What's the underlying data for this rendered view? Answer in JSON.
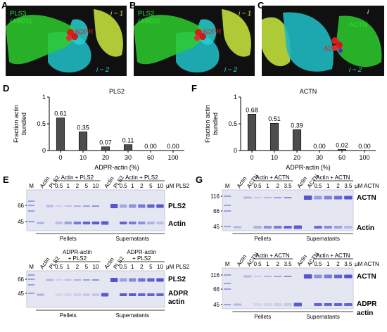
{
  "panels": {
    "A": {
      "letter": "A",
      "protein": "PLS3",
      "domain": "(ABD1)",
      "adpr": "ADPR",
      "i_minus_1": "i − 1",
      "i_minus_2": "i − 2"
    },
    "B": {
      "letter": "B",
      "protein": "PLS2",
      "domain": "(ABD2)",
      "adpr": "ADPR",
      "i_minus_1": "i − 1",
      "i_minus_2": "i − 2"
    },
    "C": {
      "letter": "C",
      "protein": "ACTN",
      "adpr": "ADPR",
      "i": "i",
      "i_minus_2": "i − 2"
    },
    "D": {
      "letter": "D"
    },
    "F": {
      "letter": "F"
    },
    "E": {
      "letter": "E"
    },
    "G": {
      "letter": "G"
    }
  },
  "chart_data": [
    {
      "type": "bar",
      "title": "PLS2",
      "xlabel": "ADPR-actin (%)",
      "ylabel": "Fraction actin bundled",
      "ylabel_lines": [
        "Fraction actin",
        "bundled"
      ],
      "categories": [
        "0",
        "10",
        "20",
        "30",
        "60",
        "100"
      ],
      "values": [
        0.61,
        0.35,
        0.07,
        0.11,
        0.0,
        0.0
      ],
      "value_labels": [
        "0.61",
        "0.35",
        "0.07",
        "0.11",
        "0.00",
        "0.00"
      ],
      "yticks": [
        "0",
        "0.5",
        "1"
      ],
      "ylim": [
        0,
        1
      ],
      "bar_color": "#4d4d4d"
    },
    {
      "type": "bar",
      "title": "ACTN",
      "xlabel": "ADPR-actin (%)",
      "ylabel": "Fraction actin bundled",
      "ylabel_lines": [
        "Fraction actin",
        "bundled"
      ],
      "categories": [
        "0",
        "10",
        "20",
        "30",
        "60",
        "100"
      ],
      "values": [
        0.68,
        0.51,
        0.39,
        0.0,
        0.02,
        0.0
      ],
      "value_labels": [
        "0.68",
        "0.51",
        "0.39",
        "0.00",
        "0.02",
        "0.00"
      ],
      "yticks": [
        "0",
        "0.5",
        "1"
      ],
      "ylim": [
        0,
        1
      ],
      "bar_color": "#4d4d4d"
    }
  ],
  "gels": {
    "E_top": {
      "lane_headers": [
        "M",
        "Actin",
        "PLS2",
        "Actin",
        "PLS2"
      ],
      "group1": "Actin + PLS2",
      "group2": "Actin + PLS2",
      "concs": [
        "0.5",
        "1",
        "2",
        "5",
        "10",
        "0.5",
        "1",
        "2",
        "5",
        "10"
      ],
      "unit": "μM PLS2",
      "mw": [
        "66",
        "45"
      ],
      "band_labels": [
        "PLS2",
        "Actin"
      ],
      "footers": [
        "Pellets",
        "Supernatants"
      ]
    },
    "E_bottom": {
      "lane_headers": [
        "M",
        "Actin",
        "PLS2",
        "Actin",
        "PLS2"
      ],
      "group1": [
        "ADPR-actin",
        "+ PLS2"
      ],
      "group2": [
        "ADPR-actin",
        "+ PLS2"
      ],
      "concs": [
        "0.5",
        "1",
        "2",
        "5",
        "10",
        "0.5",
        "1",
        "2",
        "5",
        "10"
      ],
      "unit": "μM PLS2",
      "mw": [
        "66",
        "45"
      ],
      "band_labels": [
        "PLS2",
        "ADPR",
        "actin"
      ],
      "footers": [
        "Pellets",
        "Supernatants"
      ]
    },
    "G_top": {
      "lane_headers": [
        "M",
        "Actin",
        "ACTN",
        "Actin",
        "ACTN"
      ],
      "group1": "Actin + ACTN",
      "group2": "Actin + ACTN",
      "concs": [
        "0.5",
        "1",
        "2",
        "3.5",
        "0.5",
        "1",
        "2",
        "3.5"
      ],
      "unit": "μM ACTN",
      "mw": [
        "116",
        "66",
        "45"
      ],
      "band_labels": [
        "ACTN",
        "Actin"
      ],
      "footers": [
        "Pellets",
        "Supernatants"
      ]
    },
    "G_bottom": {
      "lane_headers": [
        "M",
        "Actin",
        "ACTN",
        "Actin",
        "ACTN"
      ],
      "group1": "Actin + ACTN",
      "group2": "Actin + ACTN",
      "concs": [
        "0.5",
        "1",
        "2",
        "3.5",
        "0.5",
        "1",
        "2",
        "3.5"
      ],
      "unit": "μM ACTN",
      "mw": [
        "116",
        "66",
        "45"
      ],
      "band_labels": [
        "ACTN",
        "ADPR",
        "actin"
      ],
      "footers": [
        "Pellets",
        "Supernatants"
      ]
    }
  },
  "colors": {
    "green": "#22c022",
    "cyan": "#20c8c8",
    "yellow": "#c8e040",
    "adpr_red": "#d02020",
    "bar": "#4d4d4d",
    "band": "#5a5ad0"
  }
}
